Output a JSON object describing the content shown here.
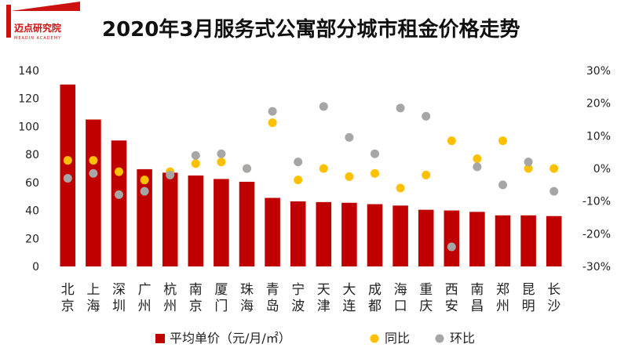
{
  "logo": {
    "name": "迈点研究院",
    "sub": "MEADIN ACADEMY"
  },
  "chart_data": {
    "type": "bar",
    "title": "2020年3月服务式公寓部分城市租金价格走势",
    "categories": [
      "北京",
      "上海",
      "深圳",
      "广州",
      "杭州",
      "南京",
      "厦门",
      "珠海",
      "青岛",
      "宁波",
      "天津",
      "大连",
      "成都",
      "海口",
      "重庆",
      "西安",
      "南昌",
      "郑州",
      "昆明",
      "长沙"
    ],
    "y_left": {
      "range": [
        0,
        140
      ],
      "ticks": [
        "0",
        "20",
        "40",
        "60",
        "80",
        "100",
        "120",
        "140"
      ]
    },
    "y_right": {
      "range": [
        -30,
        30
      ],
      "ticks": [
        "-30%",
        "-20%",
        "-10%",
        "0%",
        "10%",
        "20%",
        "30%"
      ]
    },
    "grid": false,
    "legend_position": "bottom",
    "series": [
      {
        "name": "平均单价（元/月/㎡）",
        "type": "bar",
        "axis": "left",
        "color": "#c00000",
        "values": [
          130,
          105,
          90,
          69.5,
          67,
          65,
          62.5,
          60.5,
          49,
          46.5,
          46,
          45.5,
          44.5,
          43.5,
          40.5,
          40,
          39,
          36.5,
          36.5,
          36
        ]
      },
      {
        "name": "同比",
        "type": "scatter",
        "axis": "right",
        "color": "#ffc000",
        "values": [
          2.5,
          2.5,
          -1.0,
          -3.5,
          -1.0,
          1.5,
          2.0,
          0.0,
          14.0,
          -3.5,
          0.0,
          -2.5,
          -1.5,
          -6.0,
          -2.0,
          8.5,
          3.0,
          8.5,
          0.0,
          0.0
        ]
      },
      {
        "name": "环比",
        "type": "scatter",
        "axis": "right",
        "color": "#a6a6a6",
        "values": [
          -3.0,
          -1.5,
          -8.0,
          -7.0,
          -2.0,
          4.0,
          4.5,
          0.0,
          17.5,
          2.0,
          19.0,
          9.5,
          4.5,
          18.5,
          16.0,
          -24.0,
          0.5,
          -5.0,
          2.0,
          -7.0
        ]
      }
    ]
  }
}
